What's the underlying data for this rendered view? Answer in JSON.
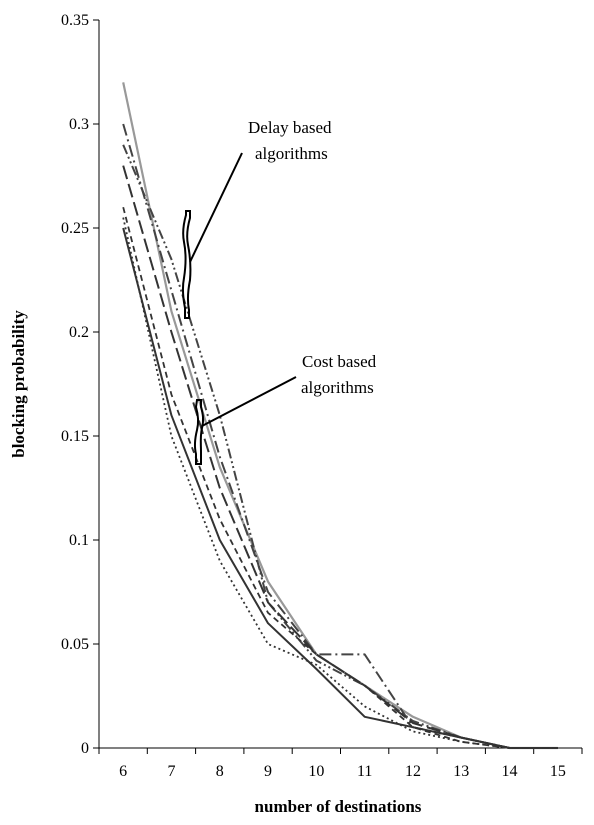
{
  "chart_data": {
    "type": "line",
    "title": "",
    "xlabel": "number of destinations",
    "ylabel": "blocking probability",
    "xlim": [
      5.5,
      15.5
    ],
    "ylim": [
      0,
      0.35
    ],
    "x_ticks": [
      6,
      7,
      8,
      9,
      10,
      11,
      12,
      13,
      14,
      15
    ],
    "y_ticks": [
      0,
      0.05,
      0.1,
      0.15,
      0.2,
      0.25,
      0.3,
      0.35
    ],
    "y_tick_labels": [
      "0",
      "0.05",
      "0.1",
      "0.15",
      "0.2",
      "0.25",
      "0.3",
      "0.35"
    ],
    "grid": false,
    "legend": "none",
    "series": [
      {
        "style": "solid-gray",
        "color": "#999999",
        "x": [
          6,
          7,
          8,
          9,
          10,
          11,
          12,
          13,
          14,
          15
        ],
        "y": [
          0.32,
          0.21,
          0.135,
          0.08,
          0.045,
          0.03,
          0.015,
          0.005,
          0,
          0
        ]
      },
      {
        "style": "dash-dot",
        "color": "#444444",
        "x": [
          6,
          7,
          8,
          9,
          10,
          11,
          12,
          13,
          14,
          15
        ],
        "y": [
          0.3,
          0.22,
          0.14,
          0.075,
          0.045,
          0.045,
          0.01,
          0.005,
          0,
          0
        ]
      },
      {
        "style": "dash-dot-dot",
        "color": "#444444",
        "x": [
          6,
          7,
          8,
          9,
          10,
          11,
          12,
          13,
          14,
          15
        ],
        "y": [
          0.29,
          0.235,
          0.16,
          0.07,
          0.042,
          0.03,
          0.013,
          0.005,
          0,
          0
        ]
      },
      {
        "style": "long-dash",
        "color": "#333333",
        "x": [
          6,
          7,
          8,
          9,
          10,
          11,
          12,
          13,
          14,
          15
        ],
        "y": [
          0.28,
          0.2,
          0.125,
          0.07,
          0.045,
          0.03,
          0.012,
          0.005,
          0,
          0
        ]
      },
      {
        "style": "solid-dark",
        "color": "#333333",
        "x": [
          6,
          7,
          8,
          9,
          10,
          11,
          12,
          13,
          14,
          15
        ],
        "y": [
          0.25,
          0.16,
          0.1,
          0.06,
          0.038,
          0.015,
          0.01,
          0.005,
          0,
          0
        ]
      },
      {
        "style": "short-dash",
        "color": "#333333",
        "x": [
          6,
          7,
          8,
          9,
          10,
          11,
          12,
          13,
          14,
          15
        ],
        "y": [
          0.26,
          0.17,
          0.11,
          0.065,
          0.045,
          0.03,
          0.01,
          0.003,
          0,
          0
        ]
      },
      {
        "style": "dotted",
        "color": "#333333",
        "x": [
          6,
          7,
          8,
          9,
          10,
          11,
          12,
          13,
          14,
          15
        ],
        "y": [
          0.255,
          0.15,
          0.09,
          0.05,
          0.04,
          0.02,
          0.008,
          0.003,
          0,
          0
        ]
      }
    ],
    "annotations": [
      {
        "text_lines": [
          "Delay based",
          "algorithms"
        ]
      },
      {
        "text_lines": [
          "Cost based",
          "algorithms"
        ]
      }
    ]
  }
}
